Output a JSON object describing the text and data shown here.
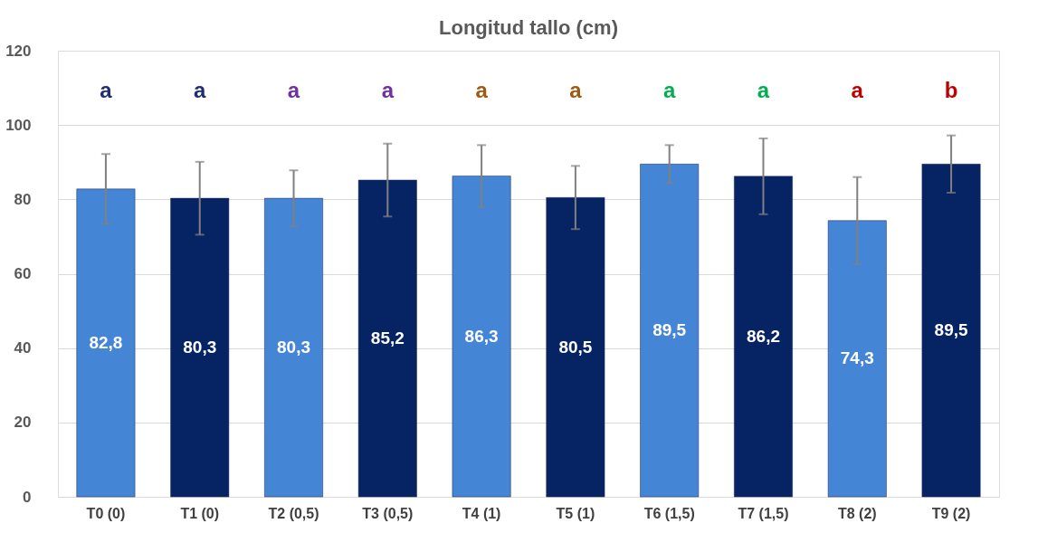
{
  "chart_data": {
    "type": "bar",
    "title": "Longitud tallo (cm)",
    "categories": [
      "T0 (0)",
      "T1 (0)",
      "T2 (0,5)",
      "T3  (0,5)",
      "T4 (1)",
      "T5 (1)",
      "T6 (1,5)",
      "T7 (1,5)",
      "T8 (2)",
      "T9 (2)"
    ],
    "values": [
      82.8,
      80.3,
      80.3,
      85.2,
      86.3,
      80.5,
      89.5,
      86.2,
      74.3,
      89.5
    ],
    "value_labels": [
      "82,8",
      "80,3",
      "80,3",
      "85,2",
      "86,3",
      "80,5",
      "89,5",
      "86,2",
      "74,3",
      "89,5"
    ],
    "colors": [
      "#4585d6",
      "#062463",
      "#4585d6",
      "#062463",
      "#4585d6",
      "#062463",
      "#4585d6",
      "#062463",
      "#4585d6",
      "#062463"
    ],
    "errors": [
      9.4,
      9.8,
      7.5,
      9.8,
      8.3,
      8.5,
      5.1,
      10.2,
      11.7,
      7.7
    ],
    "ylim": [
      0,
      120
    ],
    "yticks": [
      0,
      20,
      40,
      60,
      80,
      100,
      120
    ],
    "grid": "y",
    "annotations": [
      "a",
      "a",
      "a",
      "a",
      "a",
      "a",
      "a",
      "a",
      "a",
      "b"
    ]
  }
}
